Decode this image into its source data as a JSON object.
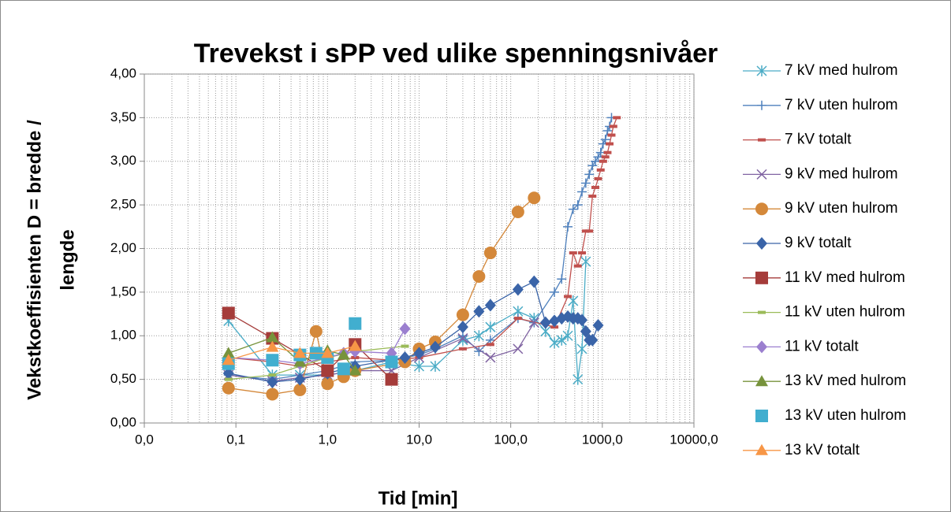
{
  "chart_data": {
    "type": "line",
    "title": "Trevekst i sPP ved ulike spenningsnivåer",
    "xlabel": "Tid [min]",
    "ylabel": [
      "Vekstkoeffisienten D = bredde /",
      "lengde"
    ],
    "xscale": "log",
    "grid": true,
    "minor_grid": true,
    "legend": "right",
    "xlim": [
      0.01,
      10000
    ],
    "xticks": [
      {
        "value": 0.01,
        "label": "0,0"
      },
      {
        "value": 0.1,
        "label": "0,1"
      },
      {
        "value": 1,
        "label": "1,0"
      },
      {
        "value": 10,
        "label": "10,0"
      },
      {
        "value": 100,
        "label": "100,0"
      },
      {
        "value": 1000,
        "label": "1000,0"
      },
      {
        "value": 10000,
        "label": "10000,0"
      }
    ],
    "ylim": [
      0,
      4
    ],
    "yticks": [
      {
        "value": 0,
        "label": "0,00"
      },
      {
        "value": 0.5,
        "label": "0,50"
      },
      {
        "value": 1,
        "label": "1,00"
      },
      {
        "value": 1.5,
        "label": "1,50"
      },
      {
        "value": 2,
        "label": "2,00"
      },
      {
        "value": 2.5,
        "label": "2,50"
      },
      {
        "value": 3,
        "label": "3,00"
      },
      {
        "value": 3.5,
        "label": "3,50"
      },
      {
        "value": 4,
        "label": "4,00"
      }
    ],
    "series": [
      {
        "name": "7 kV med hulrom",
        "color": "#4bacc6",
        "marker": "asterisk",
        "line": true,
        "x": [
          0.083,
          0.25,
          0.5,
          1,
          2,
          5,
          10,
          15,
          30,
          45,
          60,
          120,
          180,
          240,
          300,
          360,
          420,
          480,
          540,
          600,
          660
        ],
        "values": [
          1.17,
          0.55,
          0.55,
          0.55,
          0.6,
          0.7,
          0.65,
          0.65,
          0.95,
          1.0,
          1.1,
          1.28,
          1.2,
          1.05,
          0.92,
          0.95,
          1.0,
          1.4,
          0.5,
          0.85,
          1.85
        ]
      },
      {
        "name": "7 kV uten hulrom",
        "color": "#4f81bd",
        "marker": "plus",
        "line": true,
        "x": [
          0.083,
          0.25,
          0.5,
          1,
          2,
          5,
          10,
          15,
          30,
          45,
          60,
          120,
          180,
          300,
          360,
          420,
          480,
          540,
          600,
          660,
          720,
          780,
          840,
          900,
          960,
          1020,
          1080,
          1140,
          1200,
          1260
        ],
        "values": [
          0.55,
          0.5,
          0.55,
          0.6,
          0.7,
          0.72,
          0.78,
          0.85,
          1.0,
          0.82,
          0.95,
          1.2,
          1.15,
          1.5,
          1.65,
          2.25,
          2.45,
          2.5,
          2.65,
          2.75,
          2.85,
          2.95,
          3.0,
          3.05,
          3.1,
          3.2,
          3.25,
          3.35,
          3.4,
          3.5
        ]
      },
      {
        "name": "7 kV totalt",
        "color": "#c0504d",
        "marker": "dash",
        "line": true,
        "x": [
          0.083,
          0.25,
          0.5,
          1,
          2,
          5,
          10,
          30,
          60,
          120,
          300,
          420,
          480,
          540,
          600,
          660,
          720,
          780,
          840,
          900,
          960,
          1020,
          1080,
          1140,
          1200,
          1260,
          1320,
          1440
        ],
        "values": [
          0.75,
          0.7,
          0.65,
          0.7,
          0.75,
          0.72,
          0.75,
          0.85,
          0.9,
          1.2,
          1.1,
          1.45,
          1.95,
          1.8,
          1.95,
          2.2,
          2.2,
          2.6,
          2.7,
          2.8,
          2.9,
          3.0,
          3.05,
          3.1,
          3.2,
          3.3,
          3.4,
          3.5
        ]
      },
      {
        "name": "9 kV med hulrom",
        "color": "#8064a2",
        "marker": "x",
        "line": true,
        "x": [
          0.083,
          0.25,
          0.5,
          1,
          2,
          5,
          10,
          30,
          60,
          120,
          180
        ],
        "values": [
          0.55,
          0.48,
          0.52,
          0.55,
          0.6,
          0.6,
          0.75,
          0.97,
          0.75,
          0.85,
          1.15
        ]
      },
      {
        "name": "9 kV uten hulrom",
        "color": "#d4883a",
        "marker": "circle",
        "line": true,
        "x": [
          0.083,
          0.25,
          0.5,
          0.75,
          1,
          1.5,
          2,
          7,
          10,
          15,
          30,
          45,
          60,
          120,
          180
        ],
        "values": [
          0.4,
          0.33,
          0.38,
          1.05,
          0.45,
          0.53,
          0.6,
          0.7,
          0.85,
          0.93,
          1.24,
          1.68,
          1.95,
          2.42,
          2.58
        ]
      },
      {
        "name": "9 kV totalt",
        "color": "#3a64a8",
        "marker": "diamond",
        "line": true,
        "x": [
          0.083,
          0.25,
          0.5,
          1,
          2,
          7,
          10,
          15,
          30,
          45,
          60,
          120,
          180,
          240,
          300,
          360,
          420,
          480,
          540,
          600,
          660,
          720,
          780,
          900
        ],
        "values": [
          0.57,
          0.47,
          0.5,
          0.57,
          0.65,
          0.75,
          0.8,
          0.87,
          1.1,
          1.28,
          1.35,
          1.53,
          1.62,
          1.15,
          1.17,
          1.2,
          1.22,
          1.2,
          1.2,
          1.18,
          1.05,
          0.95,
          0.95,
          1.12
        ]
      },
      {
        "name": "11 kV med hulrom",
        "color": "#a53c3a",
        "marker": "square",
        "line": true,
        "x": [
          0.083,
          0.25,
          1,
          2,
          5
        ],
        "values": [
          1.26,
          0.97,
          0.6,
          0.9,
          0.5
        ]
      },
      {
        "name": "11 kV uten hulrom",
        "color": "#9bbb59",
        "marker": "dash",
        "line": true,
        "x": [
          0.083,
          0.25,
          0.5,
          1,
          2,
          7
        ],
        "values": [
          0.5,
          0.55,
          0.65,
          0.75,
          0.82,
          0.88
        ]
      },
      {
        "name": "11 kV totalt",
        "color": "#9b7fcf",
        "marker": "diamond",
        "line": true,
        "x": [
          0.083,
          0.25,
          0.5,
          1,
          1.5,
          2,
          5,
          7
        ],
        "values": [
          0.75,
          0.72,
          0.68,
          0.75,
          0.8,
          0.82,
          0.8,
          1.08
        ]
      },
      {
        "name": "13 kV med hulrom",
        "color": "#77933c",
        "marker": "triangle",
        "line": true,
        "x": [
          0.083,
          0.25,
          0.5,
          1,
          1.5,
          2
        ],
        "values": [
          0.8,
          0.98,
          0.7,
          0.83,
          0.78,
          0.6
        ]
      },
      {
        "name": "13 kV uten hulrom",
        "color": "#41aecf",
        "marker": "square",
        "line": false,
        "x": [
          0.083,
          0.25,
          0.5,
          0.75,
          1,
          1.5,
          2,
          5
        ],
        "values": [
          0.68,
          0.72,
          0.78,
          0.8,
          0.75,
          0.62,
          1.14,
          0.7
        ]
      },
      {
        "name": "13 kV totalt",
        "color": "#f79646",
        "marker": "triangle",
        "line": true,
        "x": [
          0.083,
          0.25,
          0.5,
          1,
          2
        ],
        "values": [
          0.72,
          0.87,
          0.8,
          0.8,
          0.88
        ]
      }
    ]
  }
}
